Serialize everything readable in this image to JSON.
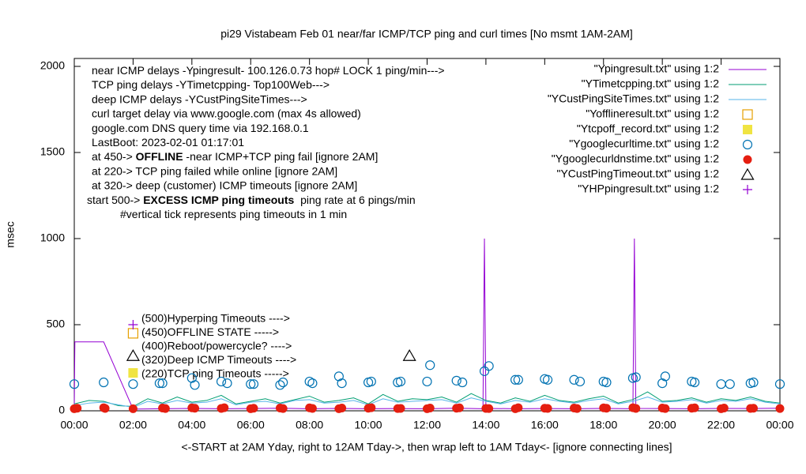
{
  "chart_data": {
    "type": "line",
    "title": "pi29 Vistabeam Feb 01  near/far ICMP/TCP ping and curl times [No msmt 1AM-2AM]",
    "xlabel": "<-START at 2AM Yday, right to 12AM Tday->, then wrap left to 1AM Tday<- [ignore connecting lines]",
    "ylabel": "msec",
    "xlim": [
      0,
      24
    ],
    "ylim": [
      0,
      2046
    ],
    "xticks": [
      {
        "value": 0,
        "label": "00:00"
      },
      {
        "value": 2,
        "label": "02:00"
      },
      {
        "value": 4,
        "label": "04:00"
      },
      {
        "value": 6,
        "label": "06:00"
      },
      {
        "value": 8,
        "label": "08:00"
      },
      {
        "value": 10,
        "label": "10:00"
      },
      {
        "value": 12,
        "label": "12:00"
      },
      {
        "value": 14,
        "label": "14:00"
      },
      {
        "value": 16,
        "label": "16:00"
      },
      {
        "value": 18,
        "label": "18:00"
      },
      {
        "value": 20,
        "label": "20:00"
      },
      {
        "value": 22,
        "label": "22:00"
      },
      {
        "value": 24,
        "label": "00:00"
      }
    ],
    "yticks": [
      0,
      500,
      1000,
      1500,
      2000
    ],
    "legend": "top-right",
    "notes": [
      [
        {
          "text": "near ICMP delays -Ypingresult- 100.126.0.73 hop# LOCK 1 ping/min--->"
        }
      ],
      [
        {
          "text": "TCP ping delays -YTimetcpping- Top100Web--->"
        }
      ],
      [
        {
          "text": "deep ICMP delays -YCustPingSiteTimes--->"
        }
      ],
      [
        {
          "text": "curl target delay via www.google.com (max 4s allowed)"
        }
      ],
      [
        {
          "text": "google.com DNS query time via 192.168.0.1"
        }
      ],
      [
        {
          "text": "LastBoot: 2023-02-01 01:17:01"
        }
      ],
      [
        {
          "text": "at 450-> "
        },
        {
          "text": "OFFLINE",
          "bold": true
        },
        {
          "text": " -near ICMP+TCP ping fail [ignore 2AM]"
        }
      ],
      [
        {
          "text": "at 220-> TCP ping failed while online [ignore 2AM]"
        }
      ],
      [
        {
          "text": "at 320-> deep (customer) ICMP timeouts [ignore 2AM]"
        }
      ],
      [
        {
          "text": "start 500-> "
        },
        {
          "text": "EXCESS ICMP ping timeouts",
          "bold": true
        },
        {
          "text": "  ping rate at 6 pings/min"
        }
      ],
      [
        {
          "text": "#vertical tick represents ping timeouts in 1 min"
        }
      ]
    ],
    "labels": [
      "(500)Hyperping Timeouts ---->",
      "(450)OFFLINE STATE ----->",
      "(400)Reboot/powercycle? ---->",
      "(320)Deep ICMP Timeouts ---->",
      "(220)TCP ping Timeouts ----->"
    ],
    "series": [
      {
        "name": "\"Ypingresult.txt\" using 1:2",
        "style": "lines",
        "color": "#9400d3",
        "x": [
          0,
          0.02,
          1,
          2,
          3,
          4,
          5,
          6,
          7,
          8,
          9,
          10,
          11,
          12,
          13,
          13.9,
          13.95,
          14,
          15,
          16,
          17,
          18,
          19,
          19.05,
          19.1,
          20,
          21,
          22,
          23,
          24
        ],
        "values": [
          15,
          400,
          400,
          10,
          12,
          14,
          12,
          13,
          15,
          12,
          14,
          12,
          13,
          12,
          15,
          12,
          1000,
          14,
          12,
          13,
          12,
          14,
          12,
          1000,
          14,
          13,
          12,
          14,
          13,
          15
        ]
      },
      {
        "name": "\"YTimetcpping.txt\" using 1:2",
        "style": "lines",
        "color": "#009e73",
        "x": [
          0,
          0.5,
          1,
          1.5,
          2,
          2.5,
          3,
          3.5,
          4,
          4.5,
          5,
          5.5,
          6,
          6.5,
          7,
          7.5,
          8,
          8.5,
          9,
          9.5,
          10,
          10.5,
          11,
          11.5,
          12,
          12.5,
          13,
          13.5,
          14,
          14.5,
          15,
          15.5,
          16,
          16.5,
          17,
          17.5,
          18,
          18.5,
          19,
          19.5,
          20,
          20.5,
          21,
          21.5,
          22,
          22.5,
          23,
          23.5,
          24
        ],
        "values": [
          40,
          60,
          55,
          30,
          25,
          70,
          45,
          80,
          50,
          60,
          90,
          40,
          55,
          70,
          45,
          65,
          85,
          50,
          60,
          75,
          40,
          95,
          55,
          70,
          65,
          80,
          50,
          100,
          60,
          45,
          75,
          55,
          90,
          60,
          50,
          70,
          85,
          45,
          65,
          110,
          55,
          60,
          75,
          50,
          70,
          60,
          80,
          55,
          45
        ]
      },
      {
        "name": "\"YCustPingSiteTimes.txt\" using 1:2",
        "style": "lines",
        "color": "#56b4e9",
        "x": [
          0,
          0.5,
          1,
          1.5,
          2,
          2.5,
          3,
          3.5,
          4,
          4.5,
          5,
          5.5,
          6,
          6.5,
          7,
          7.5,
          8,
          8.5,
          9,
          9.5,
          10,
          10.5,
          11,
          11.5,
          12,
          12.5,
          13,
          13.5,
          14,
          14.5,
          15,
          15.5,
          16,
          16.5,
          17,
          17.5,
          18,
          18.5,
          19,
          19.5,
          20,
          20.5,
          21,
          21.5,
          22,
          22.5,
          23,
          23.5,
          24
        ],
        "values": [
          30,
          45,
          50,
          35,
          20,
          55,
          40,
          60,
          45,
          50,
          70,
          35,
          50,
          55,
          40,
          60,
          65,
          45,
          50,
          60,
          35,
          70,
          50,
          55,
          60,
          65,
          45,
          75,
          55,
          40,
          60,
          50,
          70,
          55,
          45,
          60,
          70,
          40,
          55,
          80,
          50,
          55,
          65,
          45,
          60,
          55,
          70,
          50,
          40
        ]
      },
      {
        "name": "\"Yofflineresult.txt\" using 1:2",
        "style": "points",
        "marker": "square-open",
        "color": "#e69f00",
        "x": [
          2
        ],
        "values": [
          450
        ]
      },
      {
        "name": "\"Ytcpoff_record.txt\" using 1:2",
        "style": "points",
        "marker": "square",
        "color": "#f0e442",
        "x": [
          2
        ],
        "values": [
          220
        ]
      },
      {
        "name": "\"Ygooglecurltime.txt\" using 1:2",
        "style": "points",
        "marker": "circle-open",
        "color": "#0072b2",
        "x": [
          0,
          1,
          2,
          2.9,
          3,
          4,
          4.1,
          5,
          5.2,
          6,
          6.1,
          7,
          7.1,
          8,
          8.1,
          9,
          9.1,
          10,
          10.1,
          11,
          11.1,
          12,
          12.1,
          13,
          13.2,
          13.95,
          14.1,
          15,
          15.1,
          16,
          16.1,
          17,
          17.2,
          18,
          18.1,
          19,
          19.1,
          20,
          20.1,
          21,
          21.1,
          22,
          22.3,
          23,
          23.1,
          24
        ],
        "values": [
          155,
          165,
          155,
          160,
          160,
          190,
          150,
          170,
          160,
          155,
          155,
          150,
          165,
          170,
          160,
          200,
          160,
          165,
          170,
          165,
          170,
          170,
          265,
          175,
          165,
          230,
          260,
          180,
          180,
          185,
          180,
          180,
          170,
          170,
          165,
          190,
          195,
          160,
          200,
          170,
          165,
          155,
          155,
          160,
          165,
          155
        ]
      },
      {
        "name": "\"Ygooglecurldnstime.txt\" using 1:2",
        "style": "points",
        "marker": "circle",
        "color": "#e51e10",
        "x": [
          0,
          0.1,
          1,
          1.05,
          2,
          3,
          3.1,
          4,
          4.1,
          5,
          5.1,
          6,
          6.1,
          7,
          7.1,
          8,
          8.1,
          9,
          9.1,
          10,
          10.1,
          11,
          11.1,
          12,
          12.1,
          13,
          13.1,
          14,
          14.1,
          15,
          15.1,
          16,
          16.1,
          17,
          17.1,
          18,
          18.1,
          19,
          19.1,
          20,
          20.1,
          21,
          21.1,
          22,
          22.1,
          23,
          23.1,
          24
        ],
        "values": [
          12,
          15,
          18,
          14,
          12,
          16,
          13,
          17,
          15,
          14,
          18,
          12,
          15,
          16,
          13,
          17,
          14,
          12,
          16,
          15,
          18,
          13,
          14,
          12,
          16,
          15,
          17,
          14,
          13,
          12,
          18,
          15,
          14,
          16,
          13,
          17,
          15,
          18,
          14,
          16,
          13,
          15,
          17,
          12,
          16,
          14,
          15,
          13
        ]
      },
      {
        "name": "\"YCustPingTimeout.txt\" using 1:2",
        "style": "points",
        "marker": "triangle-open",
        "color": "#000000",
        "x": [
          2,
          11.4
        ],
        "values": [
          320,
          320
        ]
      },
      {
        "name": "\"YHPpingresult.txt\" using 1:2",
        "style": "points",
        "marker": "plus",
        "color": "#9400d3",
        "x": [
          2
        ],
        "values": [
          500
        ]
      }
    ]
  }
}
